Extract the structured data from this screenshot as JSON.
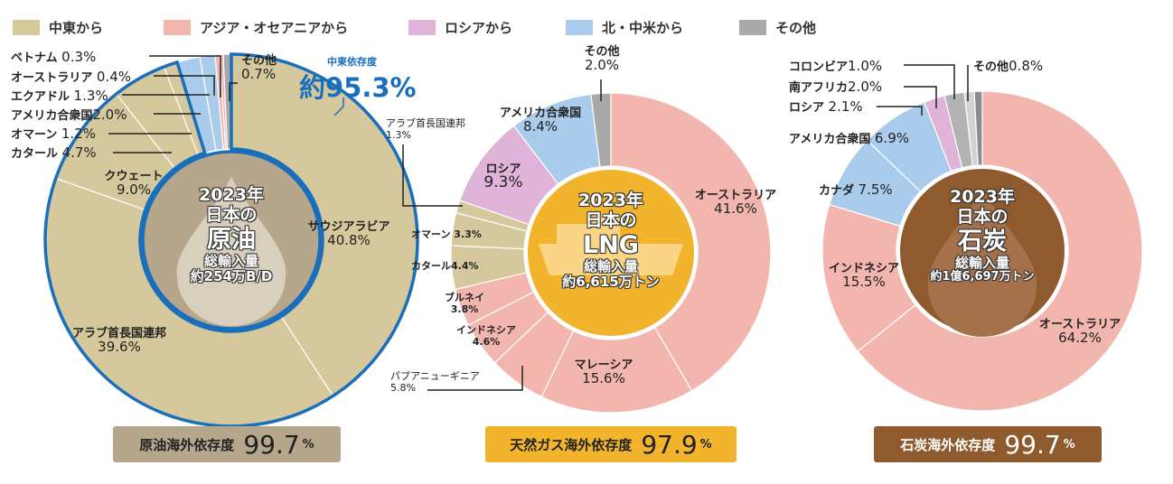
{
  "legend": [
    {
      "label": "中東から",
      "color": "#d5c89d"
    },
    {
      "label": "アジア・オセアニアから",
      "color": "#f3b6ae"
    },
    {
      "label": "ロシアから",
      "color": "#e0b3d8"
    },
    {
      "label": "北・中米から",
      "color": "#aaccec"
    },
    {
      "label": "その他",
      "color": "#a9a9a9"
    }
  ],
  "chart_data": [
    {
      "type": "pie",
      "title": "2023年 日本の原油 総輸入量 約254万B/D",
      "center": {
        "year": "2023年",
        "of": "日本の",
        "name": "原油",
        "total_label": "総輸入量",
        "total": "約254万B/D"
      },
      "middle_east_dependency": {
        "label": "中東依存度",
        "value": "約95.3%"
      },
      "slices": [
        {
          "name": "サウジアラビア",
          "value": 40.8,
          "label": "40.8%",
          "group": "中東から",
          "color": "#d5c89d"
        },
        {
          "name": "アラブ首長国連邦",
          "value": 39.6,
          "label": "39.6%",
          "group": "中東から",
          "color": "#d5c89d"
        },
        {
          "name": "クウェート",
          "value": 9.0,
          "label": "9.0%",
          "group": "中東から",
          "color": "#d5c89d"
        },
        {
          "name": "カタール",
          "value": 4.7,
          "label": "4.7%",
          "group": "中東から",
          "color": "#d5c89d"
        },
        {
          "name": "オマーン",
          "value": 1.2,
          "label": "1.2%",
          "group": "中東から",
          "color": "#d5c89d"
        },
        {
          "name": "アメリカ合衆国",
          "value": 2.0,
          "label": "2.0%",
          "group": "北・中米から",
          "color": "#aaccec"
        },
        {
          "name": "エクアドル",
          "value": 1.3,
          "label": "1.3%",
          "group": "北・中米から",
          "color": "#aaccec"
        },
        {
          "name": "オーストラリア",
          "value": 0.4,
          "label": "0.4%",
          "group": "アジア・オセアニアから",
          "color": "#f3b6ae"
        },
        {
          "name": "ベトナム",
          "value": 0.3,
          "label": "0.3%",
          "group": "アジア・オセアニアから",
          "color": "#f3b6ae"
        },
        {
          "name": "その他",
          "value": 0.7,
          "label": "0.7%",
          "group": "その他",
          "color": "#a9a9a9"
        }
      ],
      "dependency": {
        "label": "原油海外依存度",
        "value": "99.7",
        "unit": "%"
      }
    },
    {
      "type": "pie",
      "title": "2023年 日本のLNG 総輸入量 約6,615万トン",
      "center": {
        "year": "2023年",
        "of": "日本の",
        "name": "LNG",
        "total_label": "総輸入量",
        "total": "約6,615万トン"
      },
      "slices": [
        {
          "name": "オーストラリア",
          "value": 41.6,
          "label": "41.6%",
          "group": "アジア・オセアニアから",
          "color": "#f3b6ae"
        },
        {
          "name": "マレーシア",
          "value": 15.6,
          "label": "15.6%",
          "group": "アジア・オセアニアから",
          "color": "#f3b6ae"
        },
        {
          "name": "パプアニューギニア",
          "value": 5.8,
          "label": "5.8%",
          "group": "アジア・オセアニアから",
          "color": "#f3b6ae"
        },
        {
          "name": "インドネシア",
          "value": 4.6,
          "label": "4.6%",
          "group": "アジア・オセアニアから",
          "color": "#f3b6ae"
        },
        {
          "name": "ブルネイ",
          "value": 3.8,
          "label": "3.8%",
          "group": "アジア・オセアニアから",
          "color": "#f3b6ae"
        },
        {
          "name": "カタール",
          "value": 4.4,
          "label": "4.4%",
          "group": "中東から",
          "color": "#d5c89d"
        },
        {
          "name": "オマーン",
          "value": 3.3,
          "label": "3.3%",
          "group": "中東から",
          "color": "#d5c89d"
        },
        {
          "name": "アラブ首長国連邦",
          "value": 1.3,
          "label": "1.3%",
          "group": "中東から",
          "color": "#d5c89d"
        },
        {
          "name": "ロシア",
          "value": 9.3,
          "label": "9.3%",
          "group": "ロシアから",
          "color": "#e0b3d8"
        },
        {
          "name": "アメリカ合衆国",
          "value": 8.4,
          "label": "8.4%",
          "group": "北・中米から",
          "color": "#aaccec"
        },
        {
          "name": "その他",
          "value": 2.0,
          "label": "2.0%",
          "group": "その他",
          "color": "#a9a9a9"
        }
      ],
      "dependency": {
        "label": "天然ガス海外依存度",
        "value": "97.9",
        "unit": "%"
      }
    },
    {
      "type": "pie",
      "title": "2023年 日本の石炭 総輸入量 約1億6,697万トン",
      "center": {
        "year": "2023年",
        "of": "日本の",
        "name": "石炭",
        "total_label": "総輸入量",
        "total": "約1億6,697万トン"
      },
      "slices": [
        {
          "name": "オーストラリア",
          "value": 64.2,
          "label": "64.2%",
          "group": "アジア・オセアニアから",
          "color": "#f3b6ae"
        },
        {
          "name": "インドネシア",
          "value": 15.5,
          "label": "15.5%",
          "group": "アジア・オセアニアから",
          "color": "#f3b6ae"
        },
        {
          "name": "カナダ",
          "value": 7.5,
          "label": "7.5%",
          "group": "北・中米から",
          "color": "#aaccec"
        },
        {
          "name": "アメリカ合衆国",
          "value": 6.9,
          "label": "6.9%",
          "group": "北・中米から",
          "color": "#aaccec"
        },
        {
          "name": "ロシア",
          "value": 2.1,
          "label": "2.1%",
          "group": "ロシアから",
          "color": "#e0b3d8"
        },
        {
          "name": "南アフリカ",
          "value": 2.0,
          "label": "2.0%",
          "group": "その他",
          "color": "#b3b3b3"
        },
        {
          "name": "コロンビア",
          "value": 1.0,
          "label": "1.0%",
          "group": "その他",
          "color": "#d2d2d2"
        },
        {
          "name": "その他",
          "value": 0.8,
          "label": "0.8%",
          "group": "その他",
          "color": "#8c8c8c"
        }
      ],
      "dependency": {
        "label": "石炭海外依存度",
        "value": "99.7",
        "unit": "%"
      }
    }
  ]
}
